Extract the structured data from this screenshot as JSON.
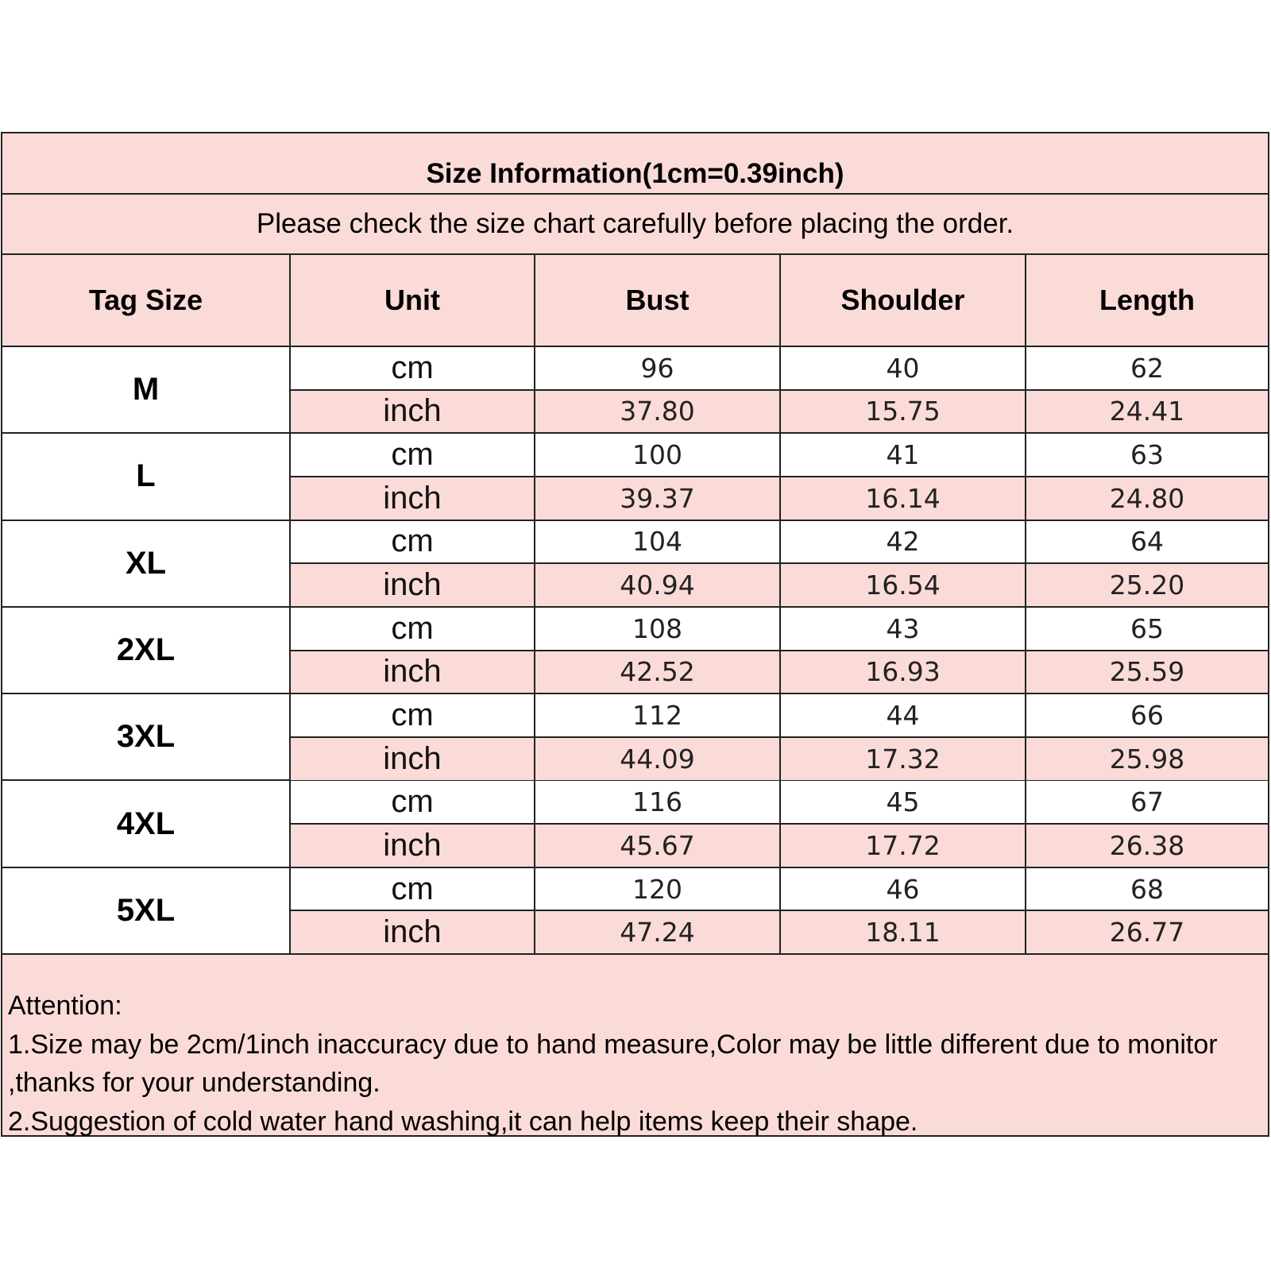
{
  "title": "Size Information(1cm=0.39inch)",
  "subtitle": "Please check the size chart carefully before placing the order.",
  "columns": [
    "Tag Size",
    "Unit",
    "Bust",
    "Shoulder",
    "Length"
  ],
  "units": {
    "cm": "cm",
    "inch": "inch"
  },
  "sizes": [
    {
      "tag": "M",
      "cm": [
        "96",
        "40",
        "62"
      ],
      "inch": [
        "37.80",
        "15.75",
        "24.41"
      ]
    },
    {
      "tag": "L",
      "cm": [
        "100",
        "41",
        "63"
      ],
      "inch": [
        "39.37",
        "16.14",
        "24.80"
      ]
    },
    {
      "tag": "XL",
      "cm": [
        "104",
        "42",
        "64"
      ],
      "inch": [
        "40.94",
        "16.54",
        "25.20"
      ]
    },
    {
      "tag": "2XL",
      "cm": [
        "108",
        "43",
        "65"
      ],
      "inch": [
        "42.52",
        "16.93",
        "25.59"
      ]
    },
    {
      "tag": "3XL",
      "cm": [
        "112",
        "44",
        "66"
      ],
      "inch": [
        "44.09",
        "17.32",
        "25.98"
      ]
    },
    {
      "tag": "4XL",
      "cm": [
        "116",
        "45",
        "67"
      ],
      "inch": [
        "45.67",
        "17.72",
        "26.38"
      ]
    },
    {
      "tag": "5XL",
      "cm": [
        "120",
        "46",
        "68"
      ],
      "inch": [
        "47.24",
        "18.11",
        "26.77"
      ]
    }
  ],
  "notes": [
    "Attention:",
    "1.Size may be 2cm/1inch inaccuracy due to hand measure,Color may be little different due to monitor ,thanks for your understanding.",
    "2.Suggestion of cold water hand washing,it can help items keep their shape."
  ],
  "colors": {
    "header_fill": "#fbdbd8",
    "border": "#222222",
    "white": "#ffffff"
  }
}
